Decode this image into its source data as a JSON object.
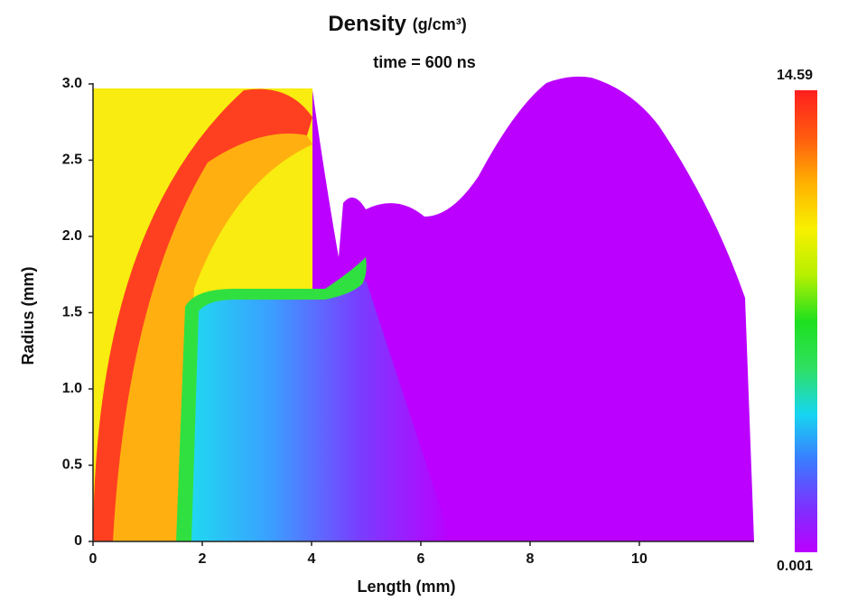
{
  "chart_data": {
    "type": "heatmap",
    "title": "Density",
    "title_unit": "(g/cm³)",
    "subtitle": "time = 600 ns",
    "x_label": "Length (mm)",
    "y_label": "Radius (mm)",
    "xlim": [
      0,
      12.1
    ],
    "ylim": [
      0,
      3
    ],
    "xticks": [
      0,
      2,
      4,
      6,
      8,
      10
    ],
    "yticks": [
      0,
      0.5,
      {
        "value": 1,
        "label": "1.0"
      },
      1.5,
      {
        "value": 2,
        "label": "2.0"
      },
      2.5,
      {
        "value": 3,
        "label": "3.0"
      }
    ],
    "colorbar": {
      "min": 0.001,
      "max": 14.59,
      "colors": [
        "#bb00ff",
        "#7a33ff",
        "#3a7cff",
        "#16d6f0",
        "#2fe060",
        "#1ee01e",
        "#b6f000",
        "#f8f000",
        "#ffb000",
        "#ff5a10",
        "#ff1e1e"
      ]
    }
  }
}
